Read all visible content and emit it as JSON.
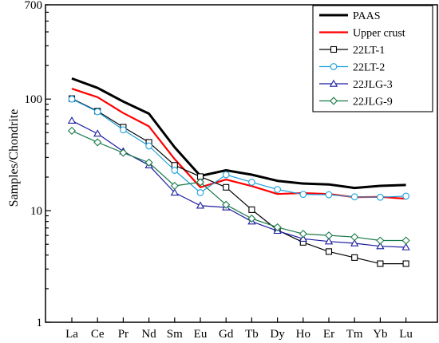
{
  "chart_data": {
    "type": "line",
    "title": "",
    "xlabel": "",
    "ylabel": "Samples/Chondrite",
    "yscale": "log",
    "ylim": [
      1,
      700
    ],
    "yticks": [
      1,
      10,
      100,
      700
    ],
    "ytick_labels": [
      "1",
      "10",
      "100",
      "700"
    ],
    "categories": [
      "La",
      "Ce",
      "Pr",
      "Nd",
      "Sm",
      "Eu",
      "Gd",
      "Tb",
      "Dy",
      "Ho",
      "Er",
      "Tm",
      "Yb",
      "Lu"
    ],
    "legend_position": "top-right",
    "grid": false,
    "series": [
      {
        "name": "PAAS",
        "color": "#000000",
        "marker": "none",
        "width": 3,
        "values": [
          153,
          126,
          95,
          74,
          37,
          20.5,
          23,
          21,
          18.5,
          17.5,
          17.2,
          16,
          16.7,
          17
        ]
      },
      {
        "name": "Upper crust",
        "color": "#ff0000",
        "marker": "none",
        "width": 2.2,
        "values": [
          124,
          104,
          75,
          57,
          29,
          16.2,
          19,
          16.6,
          14.1,
          14.4,
          14.1,
          13.2,
          13.3,
          12.8
        ]
      },
      {
        "name": "22LT-1",
        "color": "#000000",
        "marker": "square",
        "width": 1.2,
        "values": [
          101,
          78,
          56,
          41,
          25.5,
          20.2,
          16.2,
          10.2,
          6.7,
          5.2,
          4.3,
          3.8,
          3.35,
          3.35
        ]
      },
      {
        "name": "22LT-2",
        "color": "#1ea0dc",
        "marker": "circle",
        "width": 1.2,
        "values": [
          100,
          77,
          53,
          38,
          23,
          14.5,
          21,
          18,
          15.5,
          14,
          13.9,
          13.3,
          13.2,
          13.5
        ]
      },
      {
        "name": "22JLG-3",
        "color": "#1c1ca0",
        "marker": "triangle",
        "width": 1.2,
        "values": [
          64,
          49,
          34,
          25.5,
          14.5,
          11.1,
          10.7,
          8,
          6.6,
          5.6,
          5.3,
          5.1,
          4.8,
          4.7
        ]
      },
      {
        "name": "22JLG-9",
        "color": "#1a7a4a",
        "marker": "diamond",
        "width": 1.2,
        "values": [
          52,
          41,
          33,
          27,
          16.7,
          18,
          11.3,
          8.5,
          7.1,
          6.2,
          6,
          5.8,
          5.4,
          5.4
        ]
      }
    ]
  }
}
